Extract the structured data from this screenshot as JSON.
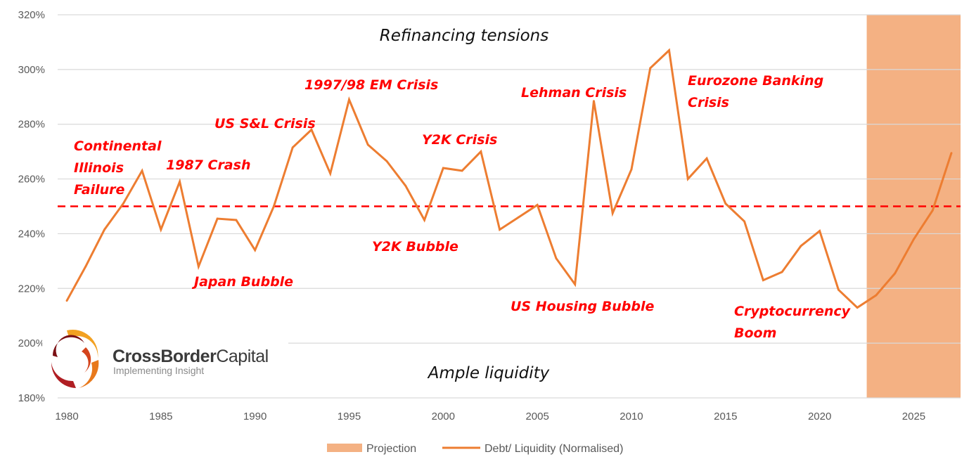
{
  "chart_data": {
    "type": "line",
    "x": [
      1980,
      1981,
      1982,
      1983,
      1984,
      1985,
      1986,
      1987,
      1988,
      1989,
      1990,
      1991,
      1992,
      1993,
      1994,
      1995,
      1996,
      1997,
      1998,
      1999,
      2000,
      2001,
      2002,
      2003,
      2004,
      2005,
      2006,
      2007,
      2008,
      2009,
      2010,
      2011,
      2012,
      2013,
      2014,
      2015,
      2016,
      2017,
      2018,
      2019,
      2020,
      2021,
      2022,
      2023,
      2024,
      2025,
      2026,
      2027
    ],
    "series": [
      {
        "name": "Debt/ Liquidity (Normalised)",
        "color": "#ed7d31",
        "values": [
          215.5,
          228,
          241.5,
          251,
          263,
          241.5,
          259,
          228,
          245.5,
          245,
          234,
          250,
          271.5,
          278,
          262,
          289,
          272.5,
          266.5,
          257.5,
          245,
          264,
          263,
          270,
          241.5,
          246,
          250.5,
          231,
          221.5,
          288.5,
          247.5,
          263.5,
          300.5,
          307,
          260,
          267.5,
          251,
          244.5,
          223,
          226,
          235.5,
          241,
          219.5,
          213,
          217.5,
          225.5,
          238,
          248.5,
          269.5
        ]
      }
    ],
    "projection": {
      "name": "Projection",
      "color": "#f4b183",
      "x_start": 2022.5,
      "x_end": 2027.5
    },
    "reference_line": {
      "value": 250,
      "color": "#ff0000",
      "style": "dashed"
    },
    "ylim": [
      180,
      320
    ],
    "xlim": [
      1980,
      2027.5
    ],
    "y_ticks": [
      180,
      200,
      220,
      240,
      260,
      280,
      300,
      320
    ],
    "y_tick_labels": [
      "180%",
      "200%",
      "220%",
      "240%",
      "260%",
      "280%",
      "300%",
      "320%"
    ],
    "x_ticks": [
      1980,
      1985,
      1990,
      1995,
      2000,
      2005,
      2010,
      2015,
      2020,
      2025
    ],
    "x_tick_labels": [
      "1980",
      "1985",
      "1990",
      "1995",
      "2000",
      "2005",
      "2010",
      "2015",
      "2020",
      "2025"
    ],
    "grid": "horizontal",
    "legend": {
      "placement": "bottom-center",
      "items": [
        "Projection",
        "Debt/ Liquidity (Normalised)"
      ]
    },
    "zone_labels": {
      "top": "Refinancing tensions",
      "bottom": "Ample liquidity"
    },
    "annotations": [
      [
        "Continental",
        "Illinois",
        "Failure"
      ],
      [
        "1987 Crash"
      ],
      [
        "US S&L Crisis"
      ],
      [
        "Japan Bubble"
      ],
      [
        "1997/98 EM Crisis"
      ],
      [
        "Y2K Crisis"
      ],
      [
        "Y2K Bubble"
      ],
      [
        "Lehman Crisis"
      ],
      [
        "US Housing Bubble"
      ],
      [
        "Eurozone Banking",
        "Crisis"
      ],
      [
        "Cryptocurrency",
        "Boom"
      ]
    ],
    "annotation_color": "#ff0000"
  },
  "logo": {
    "name_bold": "CrossBorder",
    "name_light": "Capital",
    "tagline": "Implementing Insight"
  }
}
